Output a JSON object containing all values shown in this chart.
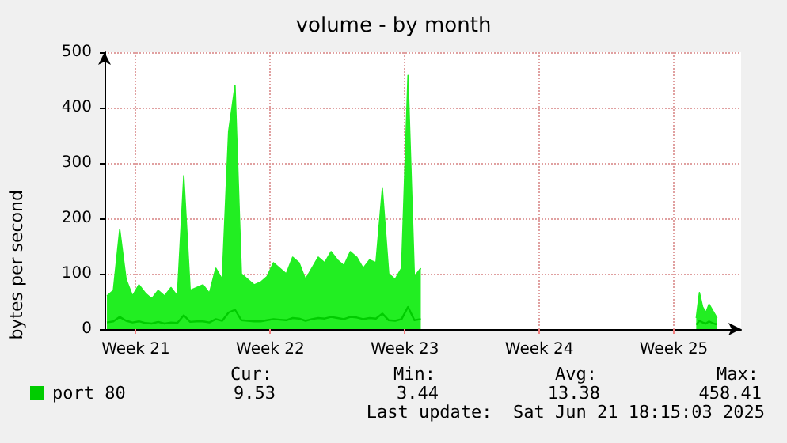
{
  "chart_data": {
    "type": "line",
    "title": "volume - by month",
    "ylabel": "bytes per second",
    "x": [
      "2025-05-21T00:00",
      "2025-05-21T08:00",
      "2025-05-21T16:00",
      "2025-05-22T00:00",
      "2025-05-22T08:00",
      "2025-05-22T16:00",
      "2025-05-23T00:00",
      "2025-05-23T08:00",
      "2025-05-23T16:00",
      "2025-05-24T00:00",
      "2025-05-24T08:00",
      "2025-05-24T16:00",
      "2025-05-25T00:00",
      "2025-05-25T08:00",
      "2025-05-25T16:00",
      "2025-05-26T00:00",
      "2025-05-26T08:00",
      "2025-05-26T16:00",
      "2025-05-27T00:00",
      "2025-05-27T08:00",
      "2025-05-27T16:00",
      "2025-05-28T00:00",
      "2025-05-28T08:00",
      "2025-05-28T16:00",
      "2025-05-29T00:00",
      "2025-05-29T08:00",
      "2025-05-29T16:00",
      "2025-05-30T00:00",
      "2025-05-30T08:00",
      "2025-05-30T16:00",
      "2025-05-31T00:00",
      "2025-05-31T08:00",
      "2025-05-31T16:00",
      "2025-06-01T00:00",
      "2025-06-01T08:00",
      "2025-06-01T16:00",
      "2025-06-02T00:00",
      "2025-06-02T08:00",
      "2025-06-02T16:00",
      "2025-06-03T00:00",
      "2025-06-03T08:00",
      "2025-06-03T16:00",
      "2025-06-04T00:00",
      "2025-06-04T08:00",
      "2025-06-04T16:00",
      "2025-06-05T00:00",
      "2025-06-05T08:00",
      "2025-06-05T16:00",
      "2025-06-06T00:00",
      "2025-06-06T08:00",
      "2025-06-06T16:00",
      "2025-06-20T16:00",
      "2025-06-20T20:00",
      "2025-06-21T00:00",
      "2025-06-21T04:00",
      "2025-06-21T08:00",
      "2025-06-21T12:00",
      "2025-06-21T16:00",
      "2025-06-21T18:00"
    ],
    "series": [
      {
        "type": "area",
        "color": "#22ee22",
        "values": [
          60,
          70,
          180,
          90,
          60,
          80,
          65,
          55,
          70,
          60,
          75,
          60,
          277,
          70,
          75,
          80,
          65,
          110,
          90,
          357,
          440,
          100,
          90,
          80,
          85,
          95,
          120,
          110,
          100,
          130,
          120,
          90,
          110,
          130,
          120,
          140,
          125,
          115,
          140,
          130,
          110,
          125,
          120,
          254,
          100,
          90,
          110,
          458,
          95,
          110,
          null,
          20,
          66,
          40,
          30,
          45,
          35,
          25,
          20
        ]
      },
      {
        "name": "port 80",
        "color": "#00cc00",
        "values": [
          12,
          14,
          22,
          15,
          12,
          14,
          11,
          10,
          13,
          10,
          12,
          11,
          25,
          13,
          14,
          14,
          12,
          18,
          15,
          30,
          35,
          16,
          15,
          14,
          14,
          16,
          18,
          17,
          16,
          20,
          19,
          15,
          18,
          20,
          19,
          22,
          20,
          18,
          22,
          21,
          18,
          20,
          19,
          28,
          16,
          15,
          18,
          40,
          16,
          18,
          null,
          8,
          15,
          12,
          10,
          14,
          11,
          9,
          9.53
        ]
      }
    ],
    "xlim": [
      "2025-05-20T21:00",
      "2025-06-23T00:00"
    ],
    "xticks": [
      {
        "value": "2025-05-22T12:00",
        "label": "Week 21"
      },
      {
        "value": "2025-05-29T12:00",
        "label": "Week 22"
      },
      {
        "value": "2025-06-05T12:00",
        "label": "Week 23"
      },
      {
        "value": "2025-06-12T12:00",
        "label": "Week 24"
      },
      {
        "value": "2025-06-19T12:00",
        "label": "Week 25"
      }
    ],
    "ylim": [
      0,
      500
    ],
    "yticks": [
      0,
      100,
      200,
      300,
      400,
      500
    ],
    "grid": true,
    "legend": "bottom left",
    "marker": "none",
    "line_style": "solid",
    "annotations": [
      "Cur:",
      "Min:",
      "Avg:",
      "Max:",
      "9.53",
      "3.44",
      "13.38",
      "458.41",
      "Last update:  Sat Jun 21 18:15:03 2025"
    ]
  }
}
